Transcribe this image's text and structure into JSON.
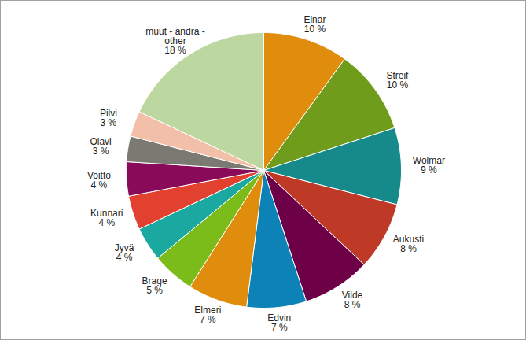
{
  "chart_data": {
    "type": "pie",
    "categories": [
      "Einar",
      "Streif",
      "Wolmar",
      "Aukusti",
      "Vilde",
      "Edvin",
      "Elmeri",
      "Brage",
      "Jyvä",
      "Kunnari",
      "Voitto",
      "Olavi",
      "Pilvi",
      "muut - andra -\nother"
    ],
    "values": [
      10,
      10,
      9,
      8,
      8,
      7,
      7,
      5,
      4,
      4,
      4,
      3,
      3,
      18
    ],
    "value_labels": [
      "10 %",
      "10 %",
      "9 %",
      "8 %",
      "8 %",
      "7 %",
      "7 %",
      "5 %",
      "4 %",
      "4 %",
      "4 %",
      "3 %",
      "3 %",
      "18 %"
    ],
    "colors": [
      "#e08c0c",
      "#6f9c1a",
      "#168a8a",
      "#bf3a26",
      "#6d0046",
      "#0c82b6",
      "#e08c0c",
      "#7bbb1a",
      "#1aa8a0",
      "#e2412f",
      "#8a0a5a",
      "#7a7a72",
      "#f2c0a8",
      "#bcd8a0"
    ],
    "data_labels": true
  }
}
